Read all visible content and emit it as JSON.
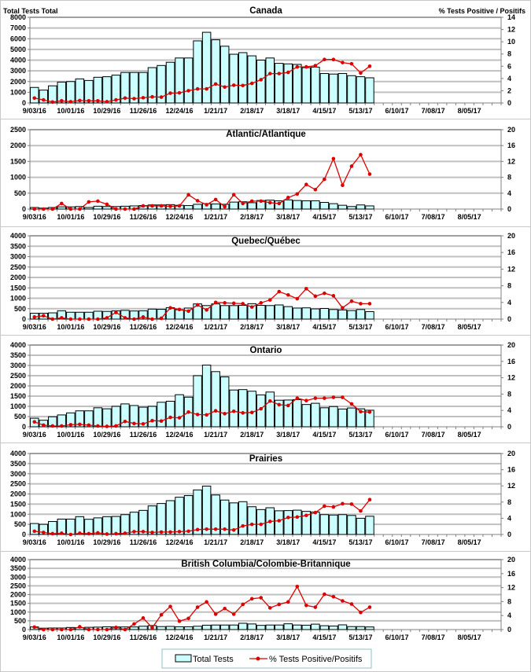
{
  "legend": {
    "bar_label": "Total Tests",
    "line_label": "% Tests Positive/Positifs"
  },
  "colors": {
    "bar_fill": "#ccffff",
    "line": "#dd0000"
  },
  "chart_data": [
    {
      "type": "bar+line",
      "title": "Canada",
      "ylabel": "Total Tests Total",
      "y2label": "% Tests Positive / Positifs",
      "ylim": [
        0,
        8000
      ],
      "yticks": [
        0,
        1000,
        2000,
        3000,
        4000,
        5000,
        6000,
        7000,
        8000
      ],
      "y2lim": [
        0,
        14
      ],
      "y2ticks": [
        0,
        2,
        4,
        6,
        8,
        10,
        12,
        14
      ],
      "x_tick_labels": [
        "9/03/16",
        "10/01/16",
        "10/29/16",
        "11/26/16",
        "12/24/16",
        "1/21/17",
        "2/18/17",
        "3/18/17",
        "4/15/17",
        "5/13/17",
        "6/10/17",
        "7/08/17",
        "8/05/17"
      ],
      "weeks_total": 52,
      "grid": true,
      "series": [
        {
          "name": "Total Tests",
          "axis": "left",
          "values": [
            1450,
            1200,
            1600,
            1950,
            2000,
            2250,
            2100,
            2400,
            2450,
            2600,
            2850,
            2850,
            2850,
            3300,
            3500,
            3800,
            4200,
            4200,
            5800,
            6600,
            5900,
            5300,
            4550,
            4700,
            4400,
            4000,
            4200,
            3700,
            3650,
            3600,
            3300,
            3350,
            2750,
            2700,
            2750,
            2550,
            2450,
            2350
          ]
        },
        {
          "name": "% Tests Positive/Positifs",
          "axis": "right",
          "values": [
            0.8,
            0.5,
            0.15,
            0.35,
            0.2,
            0.4,
            0.35,
            0.35,
            0.2,
            0.5,
            0.8,
            0.7,
            0.85,
            1.0,
            0.95,
            1.6,
            1.65,
            2.0,
            2.3,
            2.3,
            3.1,
            2.6,
            2.9,
            2.85,
            3.2,
            3.8,
            4.8,
            4.8,
            5.0,
            5.9,
            5.9,
            6.1,
            7.1,
            7.1,
            6.6,
            6.4,
            4.9,
            6.0
          ]
        }
      ]
    },
    {
      "type": "bar+line",
      "title": "Atlantic/Atlantique",
      "ylim": [
        0,
        2500
      ],
      "yticks": [
        0,
        500,
        1000,
        1500,
        2000,
        2500
      ],
      "y2lim": [
        0,
        20
      ],
      "y2ticks": [
        0,
        4,
        8,
        12,
        16,
        20
      ],
      "x_tick_labels": [
        "9/03/16",
        "10/01/16",
        "10/29/16",
        "11/26/16",
        "12/24/16",
        "1/21/17",
        "2/18/17",
        "3/18/17",
        "4/15/17",
        "5/13/17",
        "6/10/17",
        "7/08/17",
        "8/05/17"
      ],
      "weeks_total": 52,
      "grid": true,
      "series": [
        {
          "name": "Total Tests",
          "axis": "left",
          "values": [
            50,
            30,
            50,
            70,
            70,
            80,
            50,
            90,
            80,
            80,
            90,
            100,
            110,
            130,
            130,
            140,
            120,
            110,
            150,
            170,
            160,
            150,
            220,
            230,
            200,
            270,
            280,
            260,
            290,
            270,
            260,
            260,
            210,
            170,
            120,
            80,
            130,
            100
          ]
        },
        {
          "name": "% Tests Positive/Positifs",
          "axis": "right",
          "values": [
            0,
            0,
            0,
            1.4,
            0,
            0,
            1.8,
            2.0,
            1.2,
            0,
            0,
            0,
            0.8,
            0.8,
            0.8,
            0.7,
            0.8,
            3.6,
            2.1,
            1.1,
            2.4,
            0.6,
            3.6,
            1.4,
            2.0,
            2.0,
            1.6,
            1.4,
            2.9,
            3.8,
            6.2,
            4.9,
            7.5,
            12.7,
            6.0,
            10.8,
            13.7,
            8.8
          ]
        }
      ]
    },
    {
      "type": "bar+line",
      "title": "Quebec/Québec",
      "ylim": [
        0,
        4000
      ],
      "yticks": [
        0,
        500,
        1000,
        1500,
        2000,
        2500,
        3000,
        3500,
        4000
      ],
      "y2lim": [
        0,
        20
      ],
      "y2ticks": [
        0,
        4,
        8,
        12,
        16,
        20
      ],
      "x_tick_labels": [
        "9/03/16",
        "10/01/16",
        "10/29/16",
        "11/26/16",
        "12/24/16",
        "1/21/17",
        "2/18/17",
        "3/18/17",
        "4/15/17",
        "5/13/17",
        "6/10/17",
        "7/08/17",
        "8/05/17"
      ],
      "weeks_total": 52,
      "grid": true,
      "series": [
        {
          "name": "Total Tests",
          "axis": "left",
          "values": [
            280,
            280,
            300,
            400,
            330,
            330,
            330,
            380,
            370,
            400,
            420,
            390,
            400,
            480,
            470,
            550,
            450,
            530,
            730,
            650,
            730,
            650,
            650,
            660,
            740,
            660,
            650,
            680,
            600,
            530,
            540,
            490,
            510,
            460,
            440,
            410,
            460,
            360
          ]
        },
        {
          "name": "% Tests Positive/Positifs",
          "axis": "right",
          "values": [
            0.5,
            0.8,
            0,
            0.3,
            0,
            0,
            0,
            0,
            0.3,
            1.6,
            0.3,
            0,
            0.5,
            0,
            0.2,
            2.7,
            2.3,
            1.9,
            3.4,
            2.2,
            4.0,
            3.9,
            3.8,
            3.7,
            2.9,
            3.9,
            4.6,
            6.6,
            5.8,
            4.9,
            7.3,
            5.5,
            6.2,
            5.6,
            2.7,
            4.3,
            3.7,
            3.7
          ]
        }
      ]
    },
    {
      "type": "bar+line",
      "title": "Ontario",
      "ylim": [
        0,
        4000
      ],
      "yticks": [
        0,
        500,
        1000,
        1500,
        2000,
        2500,
        3000,
        3500,
        4000
      ],
      "y2lim": [
        0,
        20
      ],
      "y2ticks": [
        0,
        4,
        8,
        12,
        16,
        20
      ],
      "x_tick_labels": [
        "9/03/16",
        "10/01/16",
        "10/29/16",
        "11/26/16",
        "12/24/16",
        "1/21/17",
        "2/18/17",
        "3/18/17",
        "4/15/17",
        "5/13/17",
        "6/10/17",
        "7/08/17",
        "8/05/17"
      ],
      "weeks_total": 52,
      "grid": true,
      "series": [
        {
          "name": "Total Tests",
          "axis": "left",
          "values": [
            420,
            320,
            490,
            580,
            680,
            780,
            780,
            930,
            880,
            1000,
            1120,
            1040,
            960,
            1000,
            1200,
            1250,
            1570,
            1450,
            2500,
            3020,
            2700,
            2440,
            1800,
            1820,
            1740,
            1560,
            1700,
            1300,
            1310,
            1330,
            1090,
            1150,
            930,
            990,
            870,
            920,
            880,
            810
          ]
        },
        {
          "name": "% Tests Positive/Positifs",
          "axis": "right",
          "values": [
            1.2,
            0.4,
            0.2,
            0.2,
            0.5,
            0.6,
            0.4,
            0.2,
            0.1,
            0.2,
            1.3,
            0.8,
            0.7,
            1.5,
            1.4,
            2.3,
            2.2,
            3.6,
            3.0,
            2.9,
            3.9,
            3.2,
            3.8,
            3.4,
            3.5,
            4.4,
            6.3,
            5.4,
            5.2,
            7.0,
            6.4,
            7.0,
            7.0,
            7.2,
            7.2,
            5.6,
            3.7,
            3.6
          ]
        }
      ]
    },
    {
      "type": "bar+line",
      "title": "Prairies",
      "ylim": [
        0,
        4000
      ],
      "yticks": [
        0,
        500,
        1000,
        1500,
        2000,
        2500,
        3000,
        3500,
        4000
      ],
      "y2lim": [
        0,
        20
      ],
      "y2ticks": [
        0,
        4,
        8,
        12,
        16,
        20
      ],
      "x_tick_labels": [
        "9/03/16",
        "10/01/16",
        "10/29/16",
        "11/26/16",
        "12/24/16",
        "1/21/17",
        "2/18/17",
        "3/18/17",
        "4/15/17",
        "5/13/17",
        "6/10/17",
        "7/08/17",
        "8/05/17"
      ],
      "weeks_total": 52,
      "grid": true,
      "series": [
        {
          "name": "Total Tests",
          "axis": "left",
          "values": [
            540,
            500,
            640,
            760,
            760,
            880,
            750,
            820,
            880,
            890,
            980,
            1100,
            1190,
            1410,
            1530,
            1670,
            1840,
            1920,
            2200,
            2390,
            1950,
            1700,
            1560,
            1620,
            1370,
            1230,
            1320,
            1170,
            1180,
            1200,
            1140,
            1110,
            980,
            960,
            980,
            940,
            800,
            900
          ]
        },
        {
          "name": "% Tests Positive/Positifs",
          "axis": "right",
          "values": [
            0.8,
            0.5,
            0.2,
            0.3,
            0,
            0.3,
            0.2,
            0.4,
            0.1,
            0.2,
            0.3,
            0.7,
            0.7,
            0.5,
            0.6,
            0.6,
            0.7,
            0.8,
            1.2,
            1.3,
            1.3,
            1.3,
            1.1,
            2.1,
            2.5,
            2.5,
            3.2,
            3.4,
            4.2,
            4.3,
            4.7,
            5.4,
            7.0,
            6.8,
            7.6,
            7.5,
            5.8,
            8.6
          ]
        }
      ]
    },
    {
      "type": "bar+line",
      "title": "British Columbia/Colombie-Britannique",
      "ylim": [
        0,
        4000
      ],
      "yticks": [
        0,
        500,
        1000,
        1500,
        2000,
        2500,
        3000,
        3500,
        4000
      ],
      "y2lim": [
        0,
        20
      ],
      "y2ticks": [
        0,
        4,
        8,
        12,
        16,
        20
      ],
      "x_tick_labels": [
        "9/03/16",
        "10/01/16",
        "10/29/16",
        "11/26/16",
        "12/24/16",
        "1/21/17",
        "2/18/17",
        "3/18/17",
        "4/15/17",
        "5/13/17",
        "6/10/17",
        "7/08/17",
        "8/05/17"
      ],
      "weeks_total": 52,
      "grid": true,
      "series": [
        {
          "name": "Total Tests",
          "axis": "left",
          "values": [
            150,
            80,
            90,
            90,
            120,
            110,
            130,
            140,
            160,
            150,
            150,
            150,
            190,
            230,
            170,
            180,
            160,
            160,
            190,
            250,
            260,
            260,
            260,
            360,
            320,
            240,
            260,
            260,
            330,
            260,
            250,
            310,
            220,
            200,
            270,
            170,
            170,
            150
          ]
        },
        {
          "name": "% Tests Positive/Positifs",
          "axis": "right",
          "values": [
            0.7,
            0,
            0,
            0,
            0,
            0.8,
            0,
            0,
            0,
            0.6,
            0,
            1.6,
            3.3,
            0.5,
            4.2,
            6.6,
            2.4,
            3.2,
            6.4,
            7.9,
            4.4,
            6.0,
            4.4,
            7.2,
            8.8,
            9.1,
            6.2,
            7.2,
            7.9,
            12.3,
            6.9,
            6.4,
            10.1,
            9.4,
            8.2,
            7.3,
            4.9,
            6.4
          ]
        }
      ]
    }
  ]
}
